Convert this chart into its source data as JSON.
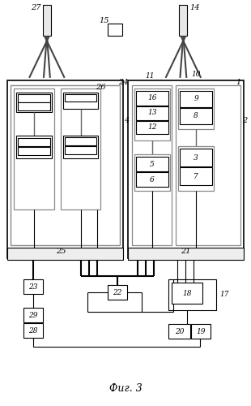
{
  "fig_label": "Фиг. 3",
  "bg_color": "#ffffff",
  "lc": "#000000",
  "figure_size": [
    3.1,
    5.0
  ],
  "dpi": 100
}
